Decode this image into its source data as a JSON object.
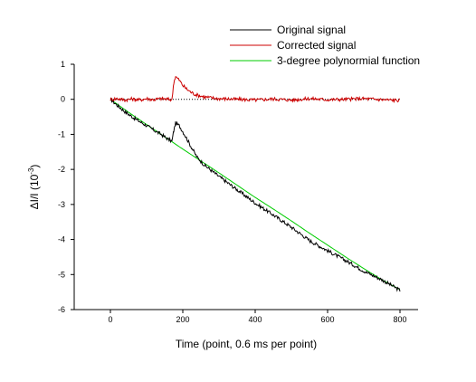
{
  "chart_data": {
    "type": "line",
    "xlabel": "Time (point, 0.6 ms per point)",
    "ylabel": {
      "main": "ΔI/I (10",
      "superscript": "-3",
      "close": ")"
    },
    "xlim": [
      -100,
      850
    ],
    "ylim": [
      -6,
      1
    ],
    "x_ticks": [
      {
        "value": 0,
        "label": "0"
      },
      {
        "value": 200,
        "label": "200"
      },
      {
        "value": 400,
        "label": "400"
      },
      {
        "value": 600,
        "label": "600"
      },
      {
        "value": 800,
        "label": "800"
      }
    ],
    "y_ticks": [
      {
        "value": 1,
        "label": "1"
      },
      {
        "value": 0,
        "label": "0"
      },
      {
        "value": -1,
        "label": "-1"
      },
      {
        "value": -2,
        "label": "-2"
      },
      {
        "value": -3,
        "label": "-3"
      },
      {
        "value": -4,
        "label": "-4"
      },
      {
        "value": -5,
        "label": "-5"
      },
      {
        "value": -6,
        "label": "-6"
      }
    ],
    "grid": false,
    "legend_position": "top-right",
    "baseline_reference": {
      "y": 0,
      "x_range": [
        0,
        800
      ],
      "style": "dotted",
      "color": "#000000"
    },
    "series": [
      {
        "name": "Original signal",
        "color": "#000000",
        "x": [
          0,
          20,
          40,
          60,
          80,
          100,
          120,
          140,
          160,
          170,
          175,
          180,
          190,
          200,
          210,
          220,
          230,
          240,
          260,
          280,
          300,
          350,
          400,
          450,
          500,
          550,
          600,
          650,
          700,
          750,
          800
        ],
        "y": [
          0,
          -0.18,
          -0.35,
          -0.5,
          -0.63,
          -0.75,
          -0.88,
          -1.0,
          -1.14,
          -1.2,
          -0.9,
          -0.68,
          -0.75,
          -0.92,
          -1.1,
          -1.3,
          -1.48,
          -1.66,
          -1.88,
          -2.04,
          -2.2,
          -2.58,
          -2.96,
          -3.3,
          -3.65,
          -4.03,
          -4.32,
          -4.6,
          -4.9,
          -5.15,
          -5.45
        ]
      },
      {
        "name": "Corrected signal",
        "color": "#cc0000",
        "x": [
          0,
          20,
          40,
          60,
          80,
          100,
          120,
          140,
          160,
          170,
          175,
          180,
          190,
          200,
          210,
          220,
          230,
          240,
          260,
          280,
          300,
          350,
          400,
          450,
          500,
          550,
          600,
          650,
          700,
          750,
          800
        ],
        "y": [
          0,
          0.02,
          -0.02,
          0.01,
          -0.02,
          0.02,
          -0.01,
          0.02,
          0.0,
          -0.02,
          0.48,
          0.65,
          0.55,
          0.4,
          0.3,
          0.22,
          0.16,
          0.12,
          0.07,
          0.04,
          0.02,
          0.0,
          -0.02,
          0.01,
          -0.02,
          0.02,
          -0.01,
          0.0,
          0.02,
          -0.01,
          -0.03
        ]
      },
      {
        "name": "3-degree polynormial function",
        "color": "#00cc00",
        "x": [
          0,
          50,
          100,
          150,
          200,
          250,
          300,
          350,
          400,
          450,
          500,
          550,
          600,
          650,
          700,
          750,
          800
        ],
        "y": [
          0,
          -0.37,
          -0.72,
          -1.07,
          -1.42,
          -1.76,
          -2.1,
          -2.45,
          -2.8,
          -3.13,
          -3.47,
          -3.82,
          -4.16,
          -4.5,
          -4.83,
          -5.15,
          -5.43
        ]
      }
    ]
  }
}
